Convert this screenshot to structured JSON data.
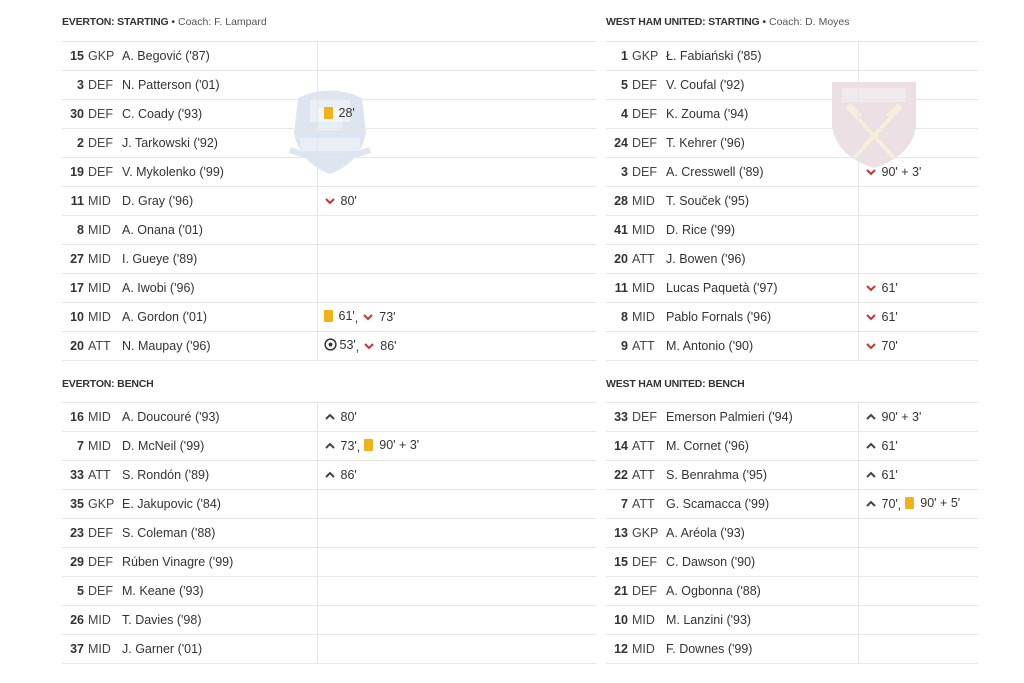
{
  "home": {
    "team": "EVERTON",
    "starting_title": "EVERTON: STARTING",
    "coach_label": "Coach: F. Lampard",
    "bench_title": "EVERTON: BENCH",
    "crest": "everton-crest",
    "starting": [
      {
        "num": "15",
        "pos": "GKP",
        "name": "A. Begović ('87)",
        "events": []
      },
      {
        "num": "3",
        "pos": "DEF",
        "name": "N. Patterson ('01)",
        "events": []
      },
      {
        "num": "30",
        "pos": "DEF",
        "name": "C. Coady ('93)",
        "events": [
          {
            "type": "yellow-card",
            "time": "28'"
          }
        ]
      },
      {
        "num": "2",
        "pos": "DEF",
        "name": "J. Tarkowski ('92)",
        "events": []
      },
      {
        "num": "19",
        "pos": "DEF",
        "name": "V. Mykolenko ('99)",
        "events": []
      },
      {
        "num": "11",
        "pos": "MID",
        "name": "D. Gray ('96)",
        "events": [
          {
            "type": "sub-out",
            "time": "80'"
          }
        ]
      },
      {
        "num": "8",
        "pos": "MID",
        "name": "A. Onana ('01)",
        "events": []
      },
      {
        "num": "27",
        "pos": "MID",
        "name": "I. Gueye ('89)",
        "events": []
      },
      {
        "num": "17",
        "pos": "MID",
        "name": "A. Iwobi ('96)",
        "events": []
      },
      {
        "num": "10",
        "pos": "MID",
        "name": "A. Gordon ('01)",
        "events": [
          {
            "type": "yellow-card",
            "time": "61'"
          },
          {
            "type": "sub-out",
            "time": "73'"
          }
        ]
      },
      {
        "num": "20",
        "pos": "ATT",
        "name": "N. Maupay ('96)",
        "events": [
          {
            "type": "goal",
            "time": "53'"
          },
          {
            "type": "sub-out",
            "time": "86'"
          }
        ]
      }
    ],
    "bench": [
      {
        "num": "16",
        "pos": "MID",
        "name": "A. Doucouré ('93)",
        "events": [
          {
            "type": "sub-in",
            "time": "80'"
          }
        ]
      },
      {
        "num": "7",
        "pos": "MID",
        "name": "D. McNeil ('99)",
        "events": [
          {
            "type": "sub-in",
            "time": "73'"
          },
          {
            "type": "yellow-card",
            "time": "90' + 3'"
          }
        ]
      },
      {
        "num": "33",
        "pos": "ATT",
        "name": "S. Rondón ('89)",
        "events": [
          {
            "type": "sub-in",
            "time": "86'"
          }
        ]
      },
      {
        "num": "35",
        "pos": "GKP",
        "name": "E. Jakupovic ('84)",
        "events": []
      },
      {
        "num": "23",
        "pos": "DEF",
        "name": "S. Coleman ('88)",
        "events": []
      },
      {
        "num": "29",
        "pos": "DEF",
        "name": "Rúben Vinagre ('99)",
        "events": []
      },
      {
        "num": "5",
        "pos": "DEF",
        "name": "M. Keane ('93)",
        "events": []
      },
      {
        "num": "26",
        "pos": "MID",
        "name": "T. Davies ('98)",
        "events": []
      },
      {
        "num": "37",
        "pos": "MID",
        "name": "J. Garner ('01)",
        "events": []
      }
    ]
  },
  "away": {
    "team": "WEST HAM UNITED",
    "starting_title": "WEST HAM UNITED: STARTING",
    "coach_label": "Coach: D. Moyes",
    "bench_title": "WEST HAM UNITED: BENCH",
    "crest": "west-ham-crest",
    "starting": [
      {
        "num": "1",
        "pos": "GKP",
        "name": "Ł. Fabiański ('85)",
        "events": []
      },
      {
        "num": "5",
        "pos": "DEF",
        "name": "V. Coufal ('92)",
        "events": []
      },
      {
        "num": "4",
        "pos": "DEF",
        "name": "K. Zouma ('94)",
        "events": []
      },
      {
        "num": "24",
        "pos": "DEF",
        "name": "T. Kehrer ('96)",
        "events": []
      },
      {
        "num": "3",
        "pos": "DEF",
        "name": "A. Cresswell ('89)",
        "events": [
          {
            "type": "sub-out",
            "time": "90' + 3'"
          }
        ]
      },
      {
        "num": "28",
        "pos": "MID",
        "name": "T. Souček ('95)",
        "events": []
      },
      {
        "num": "41",
        "pos": "MID",
        "name": "D. Rice ('99)",
        "events": []
      },
      {
        "num": "20",
        "pos": "ATT",
        "name": "J. Bowen ('96)",
        "events": []
      },
      {
        "num": "11",
        "pos": "MID",
        "name": "Lucas Paquetà ('97)",
        "events": [
          {
            "type": "sub-out",
            "time": "61'"
          }
        ]
      },
      {
        "num": "8",
        "pos": "MID",
        "name": "Pablo Fornals ('96)",
        "events": [
          {
            "type": "sub-out",
            "time": "61'"
          }
        ]
      },
      {
        "num": "9",
        "pos": "ATT",
        "name": "M. Antonio ('90)",
        "events": [
          {
            "type": "sub-out",
            "time": "70'"
          }
        ]
      }
    ],
    "bench": [
      {
        "num": "33",
        "pos": "DEF",
        "name": "Emerson Palmieri ('94)",
        "events": [
          {
            "type": "sub-in",
            "time": "90' + 3'"
          }
        ]
      },
      {
        "num": "14",
        "pos": "ATT",
        "name": "M. Cornet ('96)",
        "events": [
          {
            "type": "sub-in",
            "time": "61'"
          }
        ]
      },
      {
        "num": "22",
        "pos": "ATT",
        "name": "S. Benrahma ('95)",
        "events": [
          {
            "type": "sub-in",
            "time": "61'"
          }
        ]
      },
      {
        "num": "7",
        "pos": "ATT",
        "name": "G. Scamacca ('99)",
        "events": [
          {
            "type": "sub-in",
            "time": "70'"
          },
          {
            "type": "yellow-card",
            "time": "90' + 5'"
          }
        ]
      },
      {
        "num": "13",
        "pos": "GKP",
        "name": "A. Aréola ('93)",
        "events": []
      },
      {
        "num": "15",
        "pos": "DEF",
        "name": "C. Dawson ('90)",
        "events": []
      },
      {
        "num": "21",
        "pos": "DEF",
        "name": "A. Ogbonna ('88)",
        "events": []
      },
      {
        "num": "10",
        "pos": "MID",
        "name": "M. Lanzini ('93)",
        "events": []
      },
      {
        "num": "12",
        "pos": "MID",
        "name": "F. Downes ('99)",
        "events": []
      }
    ]
  },
  "ui": {
    "title_separator": " • ",
    "event_separator": ",",
    "colors": {
      "yellow_card": "#f2b21b",
      "sub_out": "#d23030",
      "sub_in": "#444444",
      "row_border": "#e6e6e6",
      "everton_crest": "#9fb6d6",
      "westham_crest": "#c9a9b5"
    }
  }
}
